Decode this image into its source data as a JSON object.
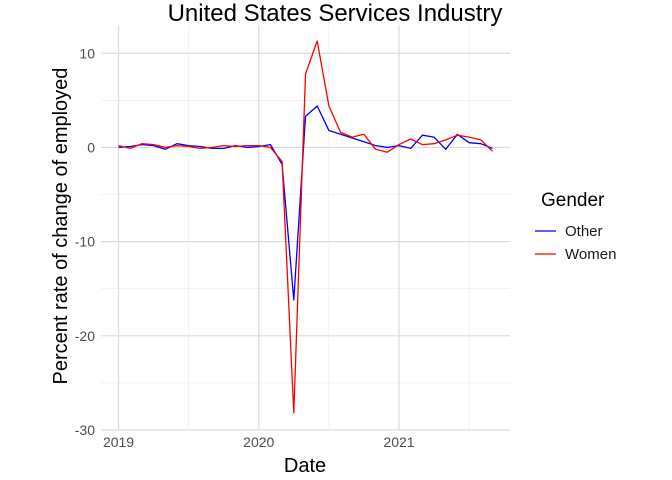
{
  "chart_data": {
    "type": "line",
    "title": "United States Services Industry",
    "xlabel": "Date",
    "ylabel": "Percent rate of change of employed",
    "x_ticks": [
      "2019",
      "2020",
      "2021"
    ],
    "y_ticks": [
      10,
      0,
      -10,
      -20,
      -30
    ],
    "x_range": [
      "2019-01",
      "2021-09"
    ],
    "ylim": [
      -30,
      13
    ],
    "grid": true,
    "legend": {
      "title": "Gender",
      "position": "right"
    },
    "x": [
      "2019-01",
      "2019-02",
      "2019-03",
      "2019-04",
      "2019-05",
      "2019-06",
      "2019-07",
      "2019-08",
      "2019-09",
      "2019-10",
      "2019-11",
      "2019-12",
      "2020-01",
      "2020-02",
      "2020-03",
      "2020-04",
      "2020-05",
      "2020-06",
      "2020-07",
      "2020-08",
      "2020-09",
      "2020-10",
      "2020-11",
      "2020-12",
      "2021-01",
      "2021-02",
      "2021-03",
      "2021-04",
      "2021-05",
      "2021-06",
      "2021-07",
      "2021-08",
      "2021-09"
    ],
    "series": [
      {
        "name": "Other",
        "color": "#0000ff",
        "values": [
          0.0,
          0.1,
          0.3,
          0.2,
          -0.2,
          0.4,
          0.2,
          0.1,
          -0.1,
          -0.1,
          0.2,
          0.0,
          0.1,
          0.3,
          -1.8,
          -16.2,
          3.3,
          4.4,
          1.8,
          1.4,
          1.0,
          0.6,
          0.2,
          0.0,
          0.2,
          -0.1,
          1.3,
          1.1,
          -0.2,
          1.4,
          0.5,
          0.4,
          -0.1
        ]
      },
      {
        "name": "Women",
        "color": "#ff0000",
        "values": [
          0.2,
          -0.1,
          0.4,
          0.3,
          0.0,
          0.2,
          0.1,
          -0.1,
          0.0,
          0.2,
          0.1,
          0.2,
          0.2,
          0.0,
          -1.5,
          -28.2,
          7.8,
          11.3,
          4.4,
          1.6,
          1.1,
          1.4,
          -0.2,
          -0.5,
          0.3,
          0.9,
          0.3,
          0.4,
          0.8,
          1.3,
          1.1,
          0.8,
          -0.4
        ]
      }
    ]
  }
}
